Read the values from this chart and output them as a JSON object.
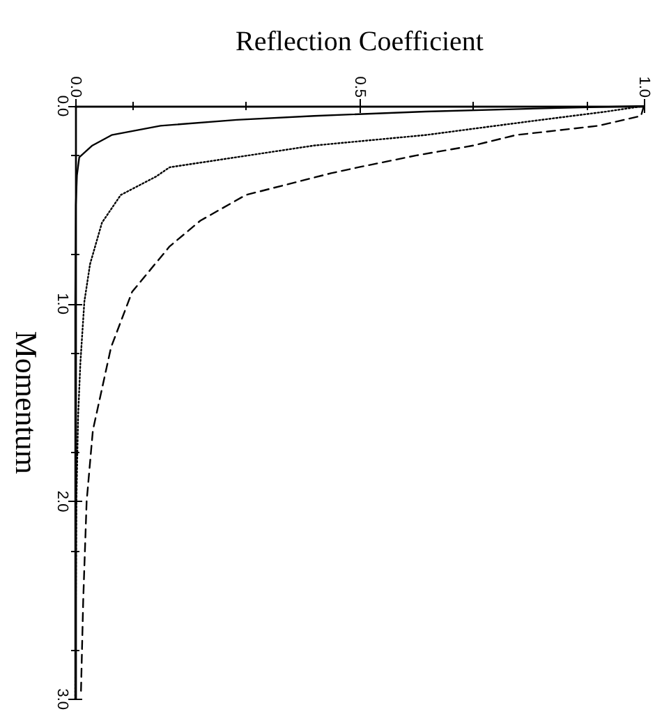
{
  "chart_data": {
    "type": "line",
    "xlabel": "Reflection Coefficient",
    "ylabel": "Momentum",
    "xlim": [
      0,
      1
    ],
    "xticks": [
      {
        "value": 0,
        "label": "0.0"
      },
      {
        "value": 0.5,
        "label": "0.5"
      },
      {
        "value": 1,
        "label": "1.0"
      }
    ],
    "ylim": [
      3,
      0
    ],
    "yticks": [
      {
        "value": 0,
        "label": "0.0"
      },
      {
        "value": 1,
        "label": "1.0"
      },
      {
        "value": 2,
        "label": "2.0"
      },
      {
        "value": 3,
        "label": "3.0"
      }
    ],
    "marker": "none",
    "series": [
      {
        "color": "#000000",
        "line_style": "solid",
        "x": [
          1,
          0.85,
          0.616,
          0.42,
          0.284,
          0.15,
          0.064,
          0.03,
          0.007,
          0.003,
          0.001,
          0,
          0,
          0
        ],
        "values": [
          0,
          0.01,
          0.028,
          0.05,
          0.07,
          0.1,
          0.147,
          0.2,
          0.26,
          0.35,
          0.5,
          1,
          2,
          3
        ]
      },
      {
        "color": "#000000",
        "line_style": "dotted",
        "x": [
          1,
          0.93,
          0.82,
          0.74,
          0.616,
          0.42,
          0.166,
          0.142,
          0.08,
          0.047,
          0.026,
          0.016,
          0.009,
          0.005,
          0.002,
          0.001,
          0
        ],
        "values": [
          0,
          0.03,
          0.07,
          0.1,
          0.147,
          0.2,
          0.31,
          0.357,
          0.45,
          0.59,
          0.8,
          0.99,
          1.3,
          1.57,
          2,
          2.5,
          3
        ]
      },
      {
        "color": "#000000",
        "line_style": "dashed",
        "x": [
          1,
          0.995,
          0.92,
          0.775,
          0.7,
          0.6,
          0.498,
          0.45,
          0.3,
          0.22,
          0.166,
          0.1,
          0.063,
          0.031,
          0.02,
          0.014,
          0.01
        ],
        "values": [
          0,
          0.05,
          0.1,
          0.147,
          0.2,
          0.25,
          0.31,
          0.34,
          0.45,
          0.58,
          0.71,
          0.94,
          1.22,
          1.64,
          2,
          2.5,
          2.97
        ]
      }
    ]
  }
}
